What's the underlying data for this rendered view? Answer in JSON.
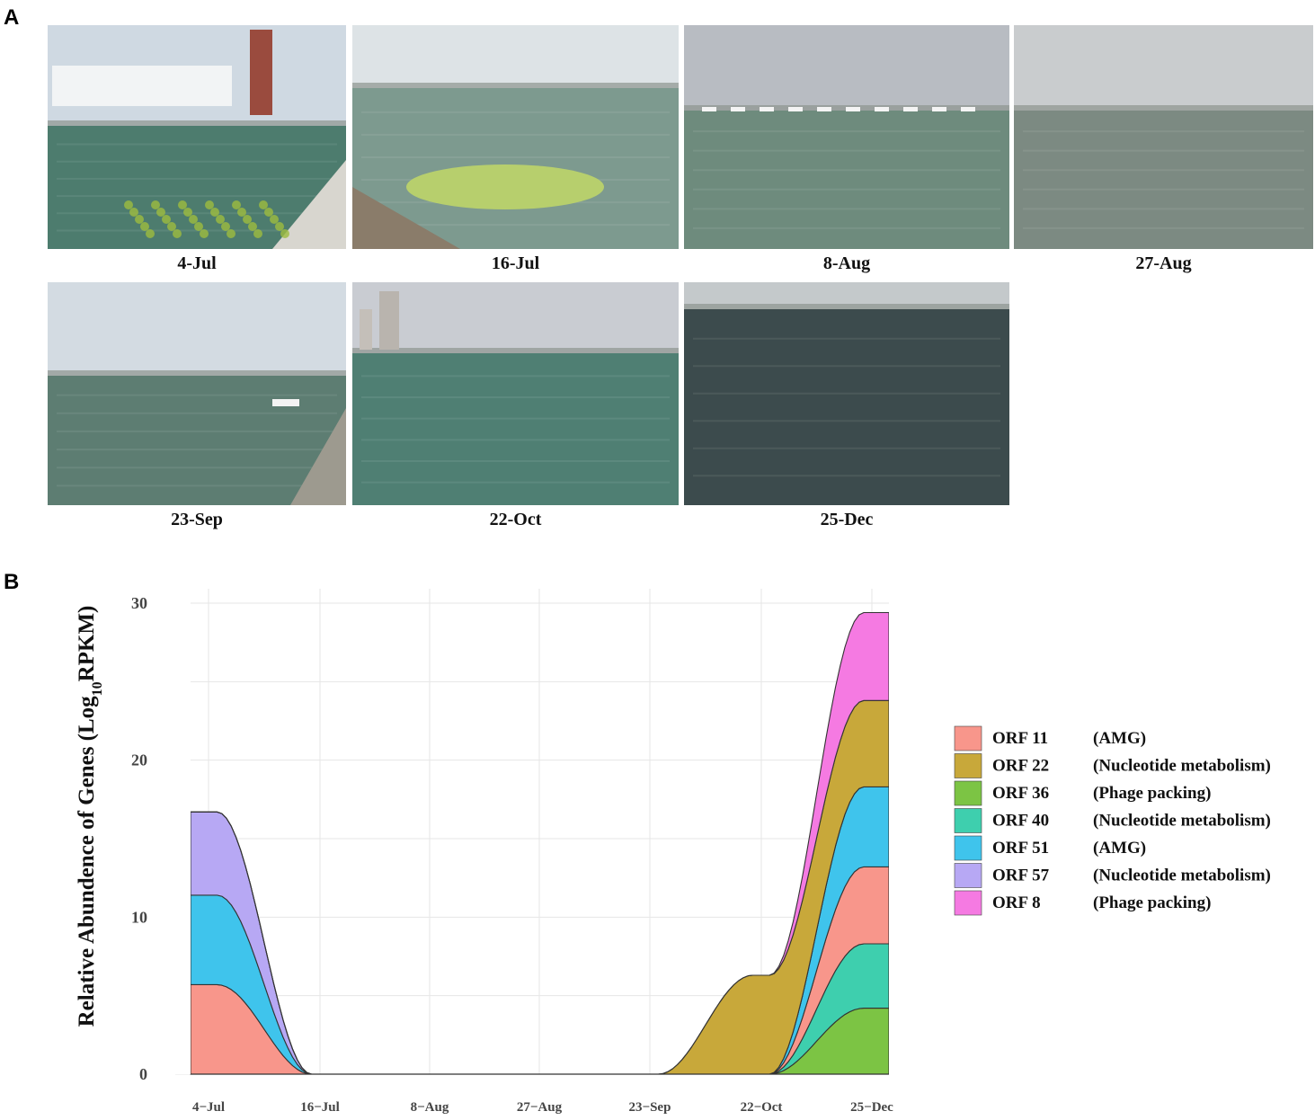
{
  "panel_labels": {
    "a": "A",
    "b": "B"
  },
  "photos": [
    {
      "caption": "4-Jul",
      "sky": "#cfd9e2",
      "water": "#4d7c6e",
      "feature": "ferry-dock-algae"
    },
    {
      "caption": "16-Jul",
      "sky": "#dde3e6",
      "water": "#7d9a8f",
      "feature": "beach-algae-workers"
    },
    {
      "caption": "8-Aug",
      "sky": "#b8bcc2",
      "water": "#6e8b7d",
      "feature": "harbor-boats"
    },
    {
      "caption": "27-Aug",
      "sky": "#c9ccce",
      "water": "#7c8a82",
      "feature": "open-sea-shore"
    },
    {
      "caption": "23-Sep",
      "sky": "#d3dbe2",
      "water": "#5d7d72",
      "feature": "pier-city-skyline"
    },
    {
      "caption": "22-Oct",
      "sky": "#c9ccd2",
      "water": "#4f7f73",
      "feature": "bay-towers"
    },
    {
      "caption": "25-Dec",
      "sky": "#c4c9cb",
      "water": "#3c4b4d",
      "feature": "calm-dark-sea"
    }
  ],
  "legend": [
    {
      "orf": "ORF 11",
      "func": "(AMG)",
      "color": "#f8968b"
    },
    {
      "orf": "ORF 22",
      "func": "(Nucleotide metabolism)",
      "color": "#c8a83a"
    },
    {
      "orf": "ORF 36",
      "func": "(Phage packing)",
      "color": "#7cc444"
    },
    {
      "orf": "ORF 40",
      "func": "(Nucleotide metabolism)",
      "color": "#3ecfae"
    },
    {
      "orf": "ORF 51",
      "func": "(AMG)",
      "color": "#3fc4ec"
    },
    {
      "orf": "ORF 57",
      "func": "(Nucleotide metabolism)",
      "color": "#b7a8f4"
    },
    {
      "orf": "ORF 8",
      "func": "(Phage packing)",
      "color": "#f57ae2"
    }
  ],
  "chart_data": {
    "type": "area",
    "subtype": "stacked-streamgraph",
    "categories": [
      "4−Jul",
      "16−Jul",
      "8−Aug",
      "27−Aug",
      "23−Sep",
      "22−Oct",
      "25−Dec"
    ],
    "ylabel_parts": {
      "pre": "Relative Abundence of Genes (Log",
      "sub": "10",
      "post": "RPKM)"
    },
    "xlabel": "",
    "ylim": [
      0,
      30
    ],
    "yticks": [
      0,
      10,
      20,
      30
    ],
    "grid": true,
    "legend_position": "right",
    "series": [
      {
        "name": "ORF 36",
        "color": "#7cc444",
        "values": [
          0,
          0,
          0,
          0,
          0,
          0,
          4.2
        ]
      },
      {
        "name": "ORF 40",
        "color": "#3ecfae",
        "values": [
          0,
          0,
          0,
          0,
          0,
          0,
          4.1
        ]
      },
      {
        "name": "ORF 11",
        "color": "#f8968b",
        "values": [
          5.7,
          0,
          0,
          0,
          0,
          0,
          4.9
        ]
      },
      {
        "name": "ORF 51",
        "color": "#3fc4ec",
        "values": [
          5.7,
          0,
          0,
          0,
          0,
          0,
          5.1
        ]
      },
      {
        "name": "ORF 57",
        "color": "#b7a8f4",
        "values": [
          5.3,
          0,
          0,
          0,
          0,
          0,
          0
        ]
      },
      {
        "name": "ORF 22",
        "color": "#c8a83a",
        "values": [
          0,
          0,
          0,
          0,
          0,
          6.3,
          5.5
        ]
      },
      {
        "name": "ORF 8",
        "color": "#f57ae2",
        "values": [
          0,
          0,
          0,
          0,
          0,
          0,
          5.6
        ]
      }
    ]
  }
}
